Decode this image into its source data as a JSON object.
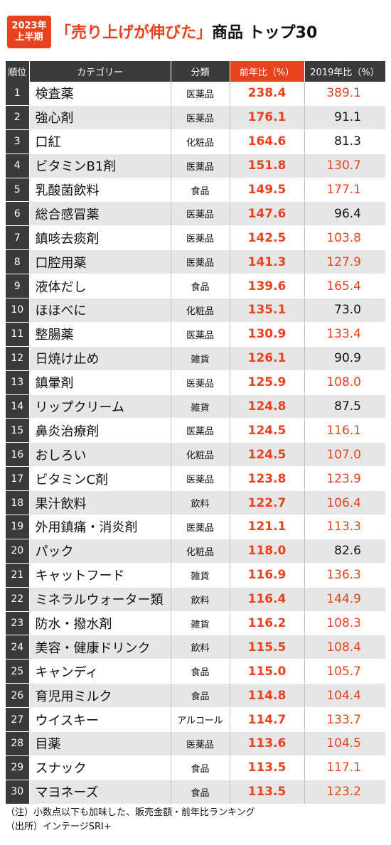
{
  "header": {
    "badge_line1": "2023年",
    "badge_line2": "上半期",
    "title_red": "「売り上げが伸びた」",
    "title_black": "商品 トップ30"
  },
  "chart_data": {
    "type": "table",
    "columns": [
      "順位",
      "カテゴリー",
      "分類",
      "前年比（%）",
      "2019年比（%）"
    ],
    "rows": [
      {
        "rank": "1",
        "category": "検査薬",
        "class": "医薬品",
        "yoy": "238.4",
        "vs2019": "389.1"
      },
      {
        "rank": "2",
        "category": "強心剤",
        "class": "医薬品",
        "yoy": "176.1",
        "vs2019": "91.1"
      },
      {
        "rank": "3",
        "category": "口紅",
        "class": "化粧品",
        "yoy": "164.6",
        "vs2019": "81.3"
      },
      {
        "rank": "4",
        "category": "ビタミンB1剤",
        "class": "医薬品",
        "yoy": "151.8",
        "vs2019": "130.7"
      },
      {
        "rank": "5",
        "category": "乳酸菌飲料",
        "class": "食品",
        "yoy": "149.5",
        "vs2019": "177.1"
      },
      {
        "rank": "6",
        "category": "総合感冒薬",
        "class": "医薬品",
        "yoy": "147.6",
        "vs2019": "96.4"
      },
      {
        "rank": "7",
        "category": "鎮咳去痰剤",
        "class": "医薬品",
        "yoy": "142.5",
        "vs2019": "103.8"
      },
      {
        "rank": "8",
        "category": "口腔用薬",
        "class": "医薬品",
        "yoy": "141.3",
        "vs2019": "127.9"
      },
      {
        "rank": "9",
        "category": "液体だし",
        "class": "食品",
        "yoy": "139.6",
        "vs2019": "165.4"
      },
      {
        "rank": "10",
        "category": "ほほべに",
        "class": "化粧品",
        "yoy": "135.1",
        "vs2019": "73.0"
      },
      {
        "rank": "11",
        "category": "整腸薬",
        "class": "医薬品",
        "yoy": "130.9",
        "vs2019": "133.4"
      },
      {
        "rank": "12",
        "category": "日焼け止め",
        "class": "雑貨",
        "yoy": "126.1",
        "vs2019": "90.9"
      },
      {
        "rank": "13",
        "category": "鎮暈剤",
        "class": "医薬品",
        "yoy": "125.9",
        "vs2019": "108.0"
      },
      {
        "rank": "14",
        "category": "リップクリーム",
        "class": "雑貨",
        "yoy": "124.8",
        "vs2019": "87.5"
      },
      {
        "rank": "15",
        "category": "鼻炎治療剤",
        "class": "医薬品",
        "yoy": "124.5",
        "vs2019": "116.1"
      },
      {
        "rank": "16",
        "category": "おしろい",
        "class": "化粧品",
        "yoy": "124.5",
        "vs2019": "107.0"
      },
      {
        "rank": "17",
        "category": "ビタミンC剤",
        "class": "医薬品",
        "yoy": "123.8",
        "vs2019": "123.9"
      },
      {
        "rank": "18",
        "category": "果汁飲料",
        "class": "飲料",
        "yoy": "122.7",
        "vs2019": "106.4"
      },
      {
        "rank": "19",
        "category": "外用鎮痛・消炎剤",
        "class": "医薬品",
        "yoy": "121.1",
        "vs2019": "113.3"
      },
      {
        "rank": "20",
        "category": "パック",
        "class": "化粧品",
        "yoy": "118.0",
        "vs2019": "82.6"
      },
      {
        "rank": "21",
        "category": "キャットフード",
        "class": "雑貨",
        "yoy": "116.9",
        "vs2019": "136.3"
      },
      {
        "rank": "22",
        "category": "ミネラルウォーター類",
        "class": "飲料",
        "yoy": "116.4",
        "vs2019": "144.9"
      },
      {
        "rank": "23",
        "category": "防水・撥水剤",
        "class": "雑貨",
        "yoy": "116.2",
        "vs2019": "108.3"
      },
      {
        "rank": "24",
        "category": "美容・健康ドリンク",
        "class": "飲料",
        "yoy": "115.5",
        "vs2019": "108.4"
      },
      {
        "rank": "25",
        "category": "キャンディ",
        "class": "食品",
        "yoy": "115.0",
        "vs2019": "105.7"
      },
      {
        "rank": "26",
        "category": "育児用ミルク",
        "class": "食品",
        "yoy": "114.8",
        "vs2019": "104.4"
      },
      {
        "rank": "27",
        "category": "ウイスキー",
        "class": "アルコール",
        "yoy": "114.7",
        "vs2019": "133.7"
      },
      {
        "rank": "28",
        "category": "目薬",
        "class": "医薬品",
        "yoy": "113.6",
        "vs2019": "104.5"
      },
      {
        "rank": "29",
        "category": "スナック",
        "class": "食品",
        "yoy": "113.5",
        "vs2019": "117.1"
      },
      {
        "rank": "30",
        "category": "マヨネーズ",
        "class": "食品",
        "yoy": "113.5",
        "vs2019": "123.2"
      }
    ]
  },
  "colors": {
    "accent": "#e8431d",
    "header_bg": "#3a3a3a",
    "alt_row": "#e6e6e6"
  },
  "notes": {
    "note": "（注）小数点以下も加味した、販売金額・前年比ランキング",
    "source": "（出所）インテージSRI+"
  }
}
